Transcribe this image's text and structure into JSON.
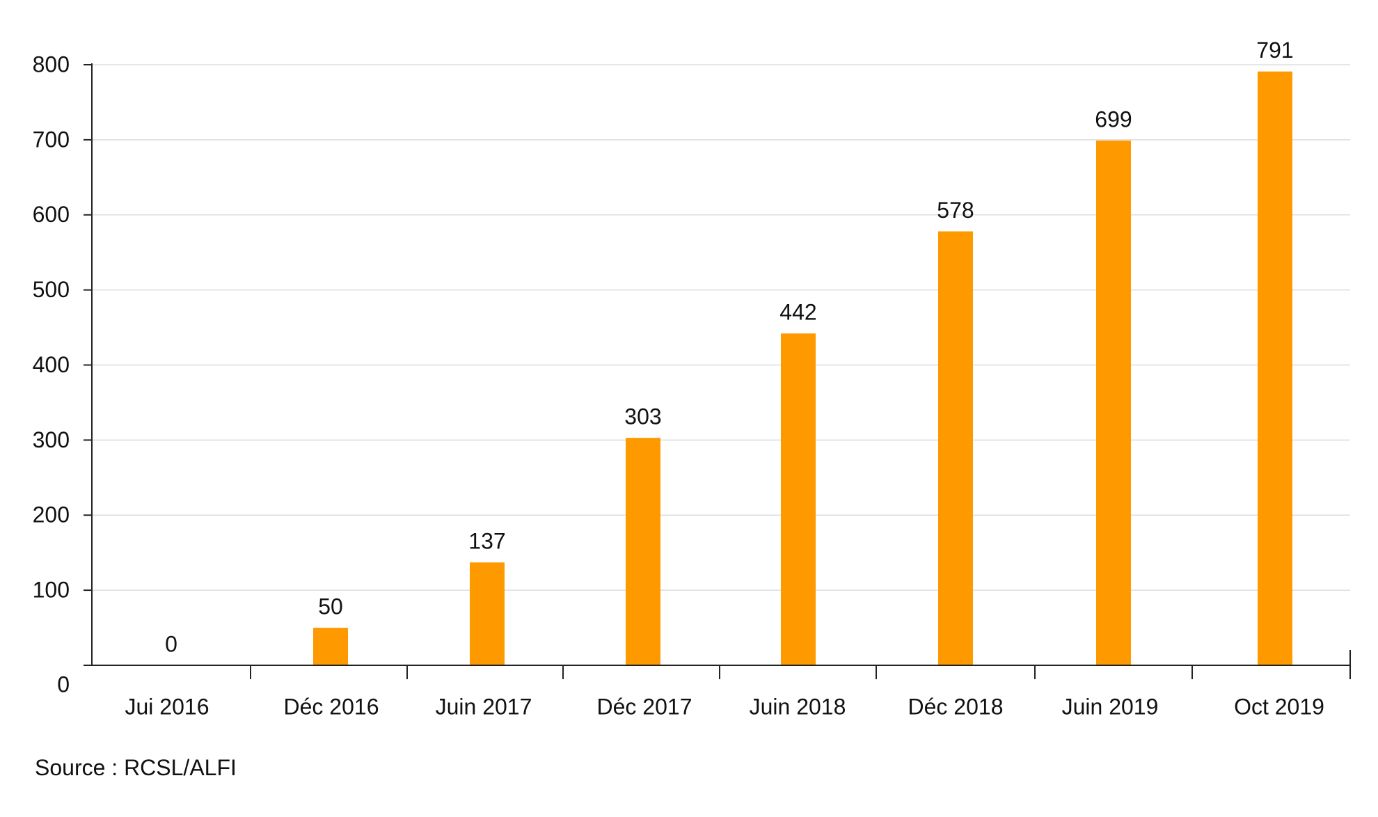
{
  "chart_data": {
    "type": "bar",
    "title": "",
    "xlabel": "",
    "ylabel": "",
    "categories": [
      "Jui 2016",
      "Déc 2016",
      "Juin 2017",
      "Déc 2017",
      "Juin 2018",
      "Déc 2018",
      "Juin 2019",
      "Oct 2019"
    ],
    "values": [
      0,
      50,
      137,
      303,
      442,
      578,
      699,
      791
    ],
    "data_labels": [
      "0",
      "50",
      "137",
      "303",
      "442",
      "578",
      "699",
      "791"
    ],
    "ylim": [
      0,
      800
    ],
    "yticks": [
      0,
      100,
      200,
      300,
      400,
      500,
      600,
      700,
      800
    ],
    "ytick_labels": [
      "0",
      "100",
      "200",
      "300",
      "400",
      "500",
      "600",
      "700",
      "800"
    ],
    "grid": true,
    "legend": "none",
    "bar_color": "#FF9900",
    "grid_color": "#dddddd",
    "axis_color": "#222222",
    "text_color": "#111111"
  },
  "source": "Source : RCSL/ALFI"
}
